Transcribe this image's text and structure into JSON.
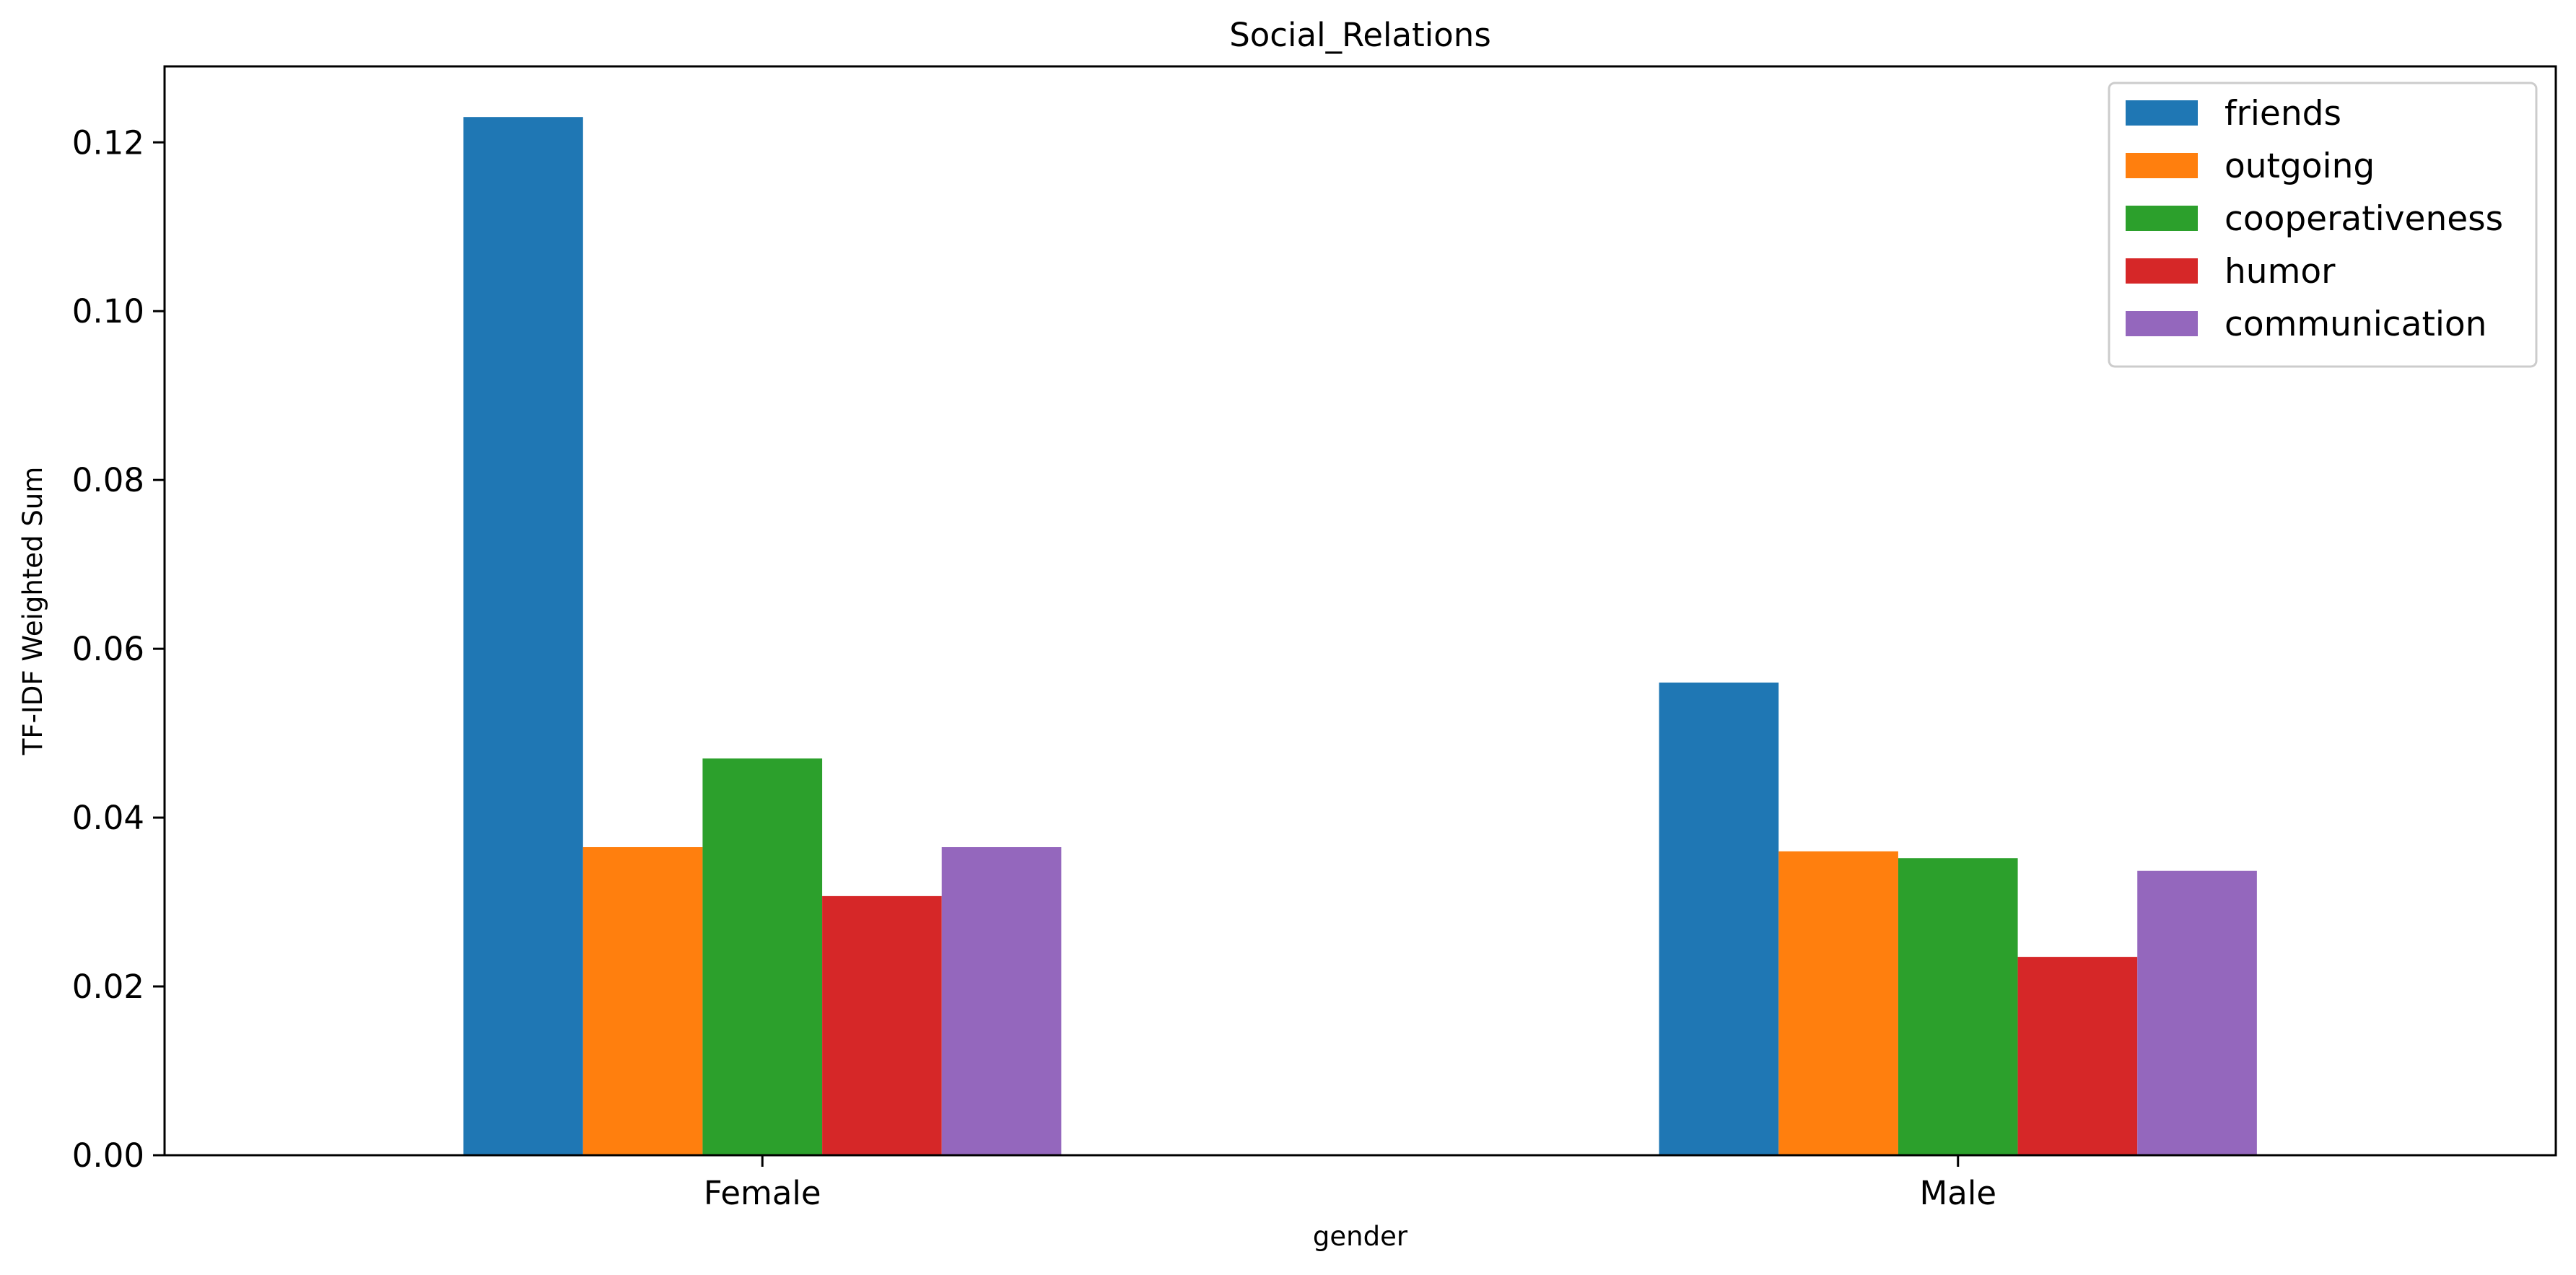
{
  "chart_data": {
    "type": "bar",
    "title": "Social_Relations",
    "xlabel": "gender",
    "ylabel": "TF-IDF Weighted Sum",
    "categories": [
      "Female",
      "Male"
    ],
    "series": [
      {
        "name": "friends",
        "values": [
          0.123,
          0.056
        ],
        "color": "#1f77b4"
      },
      {
        "name": "outgoing",
        "values": [
          0.0365,
          0.036
        ],
        "color": "#ff7f0e"
      },
      {
        "name": "cooperativeness",
        "values": [
          0.047,
          0.0352
        ],
        "color": "#2ca02c"
      },
      {
        "name": "humor",
        "values": [
          0.0307,
          0.0235
        ],
        "color": "#d62728"
      },
      {
        "name": "communication",
        "values": [
          0.0365,
          0.0337
        ],
        "color": "#9467bd"
      }
    ],
    "ylim": [
      0,
      0.129
    ],
    "yticks": [
      "0.00",
      "0.02",
      "0.04",
      "0.06",
      "0.08",
      "0.10",
      "0.12"
    ],
    "legend_position": "top-right",
    "grid": false
  }
}
